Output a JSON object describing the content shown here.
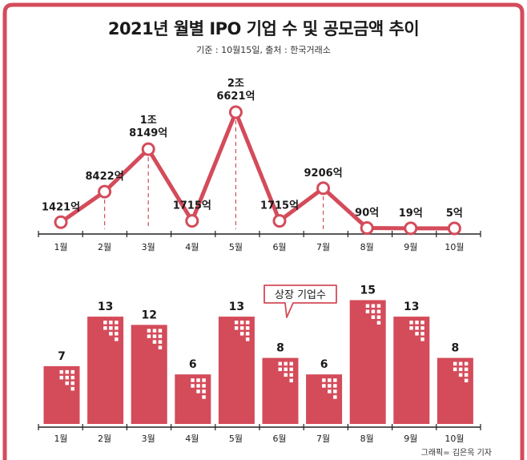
{
  "title": "2021년 월별 IPO 기업 수 및 공모금액 추이",
  "subtitle": "기준 : 10월15일, 출처 : 한국거래소",
  "credit": "그래픽= 김은옥 기자",
  "colors": {
    "accent": "#d44b5a",
    "frame": "#d44b5a",
    "axis": "#222222",
    "text": "#1a1a1a"
  },
  "chart_data": [
    {
      "type": "line",
      "categories": [
        "1월",
        "2월",
        "3월",
        "4월",
        "5월",
        "6월",
        "7월",
        "8월",
        "9월",
        "10월"
      ],
      "values": [
        1421,
        8422,
        18149,
        1715,
        26621,
        1715,
        9206,
        90,
        19,
        5
      ],
      "data_labels": [
        "1421억",
        "8422억",
        "1조 8149억",
        "1715억",
        "2조 6621억",
        "1715억",
        "9206억",
        "90억",
        "19억",
        "5억"
      ],
      "unit": "억원"
    },
    {
      "type": "bar",
      "categories": [
        "1월",
        "2월",
        "3월",
        "4월",
        "5월",
        "6월",
        "7월",
        "8월",
        "9월",
        "10월"
      ],
      "values": [
        7,
        13,
        12,
        6,
        13,
        8,
        6,
        15,
        13,
        8
      ],
      "data_labels": [
        "7",
        "13",
        "12",
        "6",
        "13",
        "8",
        "6",
        "15",
        "13",
        "8"
      ],
      "callout": "상장 기업수"
    }
  ]
}
